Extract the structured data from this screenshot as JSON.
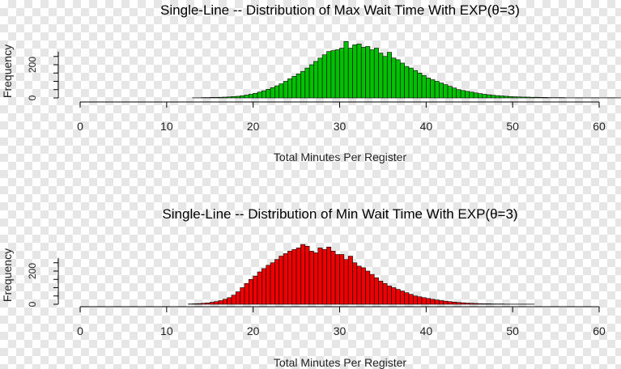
{
  "chart_data": [
    {
      "type": "bar",
      "title": "Single-Line -- Distribution of Max Wait Time With EXP(θ=3)",
      "xlabel": "Total Minutes Per Register",
      "ylabel": "Frequency",
      "xlim": [
        0,
        60
      ],
      "ylim": [
        0,
        360
      ],
      "xticks": [
        "0",
        "10",
        "20",
        "30",
        "40",
        "50",
        "60"
      ],
      "yticks": [
        "0",
        "200"
      ],
      "bin_width": 0.5,
      "color": "#00c000",
      "x": [
        13,
        13.5,
        14,
        14.5,
        15,
        15.5,
        16,
        16.5,
        17,
        17.5,
        18,
        18.5,
        19,
        19.5,
        20,
        20.5,
        21,
        21.5,
        22,
        22.5,
        23,
        23.5,
        24,
        24.5,
        25,
        25.5,
        26,
        26.5,
        27,
        27.5,
        28,
        28.5,
        29,
        29.5,
        30,
        30.5,
        31,
        31.5,
        32,
        32.5,
        33,
        33.5,
        34,
        34.5,
        35,
        35.5,
        36,
        36.5,
        37,
        37.5,
        38,
        38.5,
        39,
        39.5,
        40,
        40.5,
        41,
        41.5,
        42,
        42.5,
        43,
        43.5,
        44,
        44.5,
        45,
        45.5,
        46,
        46.5,
        47,
        47.5,
        48,
        48.5,
        49,
        49.5,
        50,
        50.5,
        51,
        51.5,
        52,
        52.5,
        53,
        53.5,
        54,
        54.5,
        55,
        55.5,
        56,
        56.5,
        57,
        57.5,
        58,
        58.5,
        59,
        59.5,
        60,
        60.5,
        61,
        61.5,
        62
      ],
      "values": [
        1,
        1,
        2,
        2,
        3,
        3,
        4,
        5,
        6,
        8,
        10,
        13,
        17,
        22,
        28,
        35,
        43,
        52,
        62,
        73,
        85,
        100,
        115,
        130,
        145,
        160,
        180,
        200,
        220,
        240,
        260,
        280,
        285,
        290,
        300,
        340,
        300,
        320,
        325,
        305,
        310,
        290,
        300,
        270,
        250,
        275,
        240,
        230,
        210,
        190,
        180,
        165,
        150,
        135,
        120,
        110,
        100,
        90,
        80,
        70,
        60,
        50,
        45,
        40,
        35,
        30,
        26,
        22,
        19,
        16,
        14,
        12,
        10,
        8,
        7,
        6,
        5,
        5,
        4,
        4,
        3,
        3,
        2,
        2,
        2,
        2,
        1,
        1,
        1,
        1,
        1,
        1,
        1,
        1,
        1,
        1,
        1,
        1,
        1
      ]
    },
    {
      "type": "bar",
      "title": "Single-Line -- Distribution of Min Wait Time With EXP(θ=3)",
      "xlabel": "Total Minutes Per Register",
      "ylabel": "Frequency",
      "xlim": [
        0,
        60
      ],
      "ylim": [
        0,
        360
      ],
      "xticks": [
        "0",
        "10",
        "20",
        "30",
        "40",
        "50",
        "60"
      ],
      "yticks": [
        "0",
        "200"
      ],
      "bin_width": 0.5,
      "color": "#ee0000",
      "x": [
        12.5,
        13,
        13.5,
        14,
        14.5,
        15,
        15.5,
        16,
        16.5,
        17,
        17.5,
        18,
        18.5,
        19,
        19.5,
        20,
        20.5,
        21,
        21.5,
        22,
        22.5,
        23,
        23.5,
        24,
        24.5,
        25,
        25.5,
        26,
        26.5,
        27,
        27.5,
        28,
        28.5,
        29,
        29.5,
        30,
        30.5,
        31,
        31.5,
        32,
        32.5,
        33,
        33.5,
        34,
        34.5,
        35,
        35.5,
        36,
        36.5,
        37,
        37.5,
        38,
        38.5,
        39,
        39.5,
        40,
        40.5,
        41,
        41.5,
        42,
        42.5,
        43,
        43.5,
        44,
        44.5,
        45,
        45.5,
        46,
        46.5,
        47,
        47.5,
        48,
        48.5,
        49,
        49.5,
        50,
        50.5,
        51,
        51.5,
        52
      ],
      "values": [
        2,
        3,
        4,
        6,
        8,
        12,
        16,
        22,
        30,
        40,
        55,
        75,
        100,
        125,
        150,
        170,
        195,
        215,
        235,
        250,
        270,
        290,
        305,
        320,
        330,
        340,
        360,
        350,
        320,
        310,
        340,
        330,
        345,
        320,
        300,
        300,
        270,
        290,
        250,
        230,
        220,
        200,
        180,
        160,
        140,
        125,
        110,
        100,
        90,
        80,
        70,
        60,
        50,
        45,
        40,
        35,
        30,
        26,
        22,
        19,
        16,
        13,
        11,
        9,
        7,
        6,
        5,
        4,
        3,
        3,
        2,
        2,
        2,
        1,
        1,
        1,
        1,
        1,
        1,
        1
      ]
    }
  ]
}
